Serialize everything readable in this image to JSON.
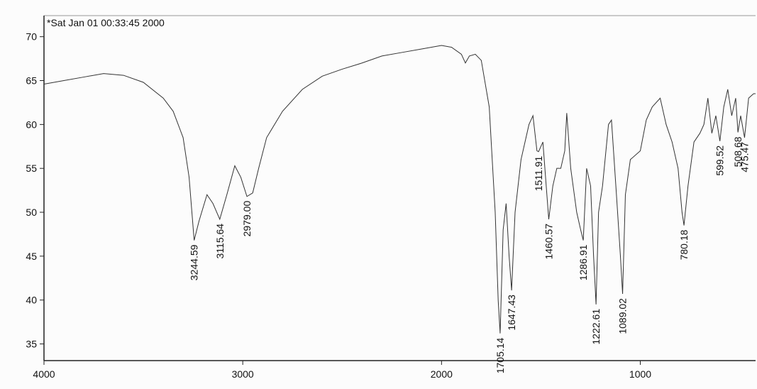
{
  "chart_data": {
    "type": "line",
    "title": "*Sat Jan 01 00:33:45 2000",
    "series": [
      {
        "color": "#333333",
        "x": [
          4000,
          3900,
          3800,
          3700,
          3600,
          3500,
          3400,
          3350,
          3300,
          3270,
          3244.59,
          3220,
          3180,
          3150,
          3115.64,
          3080,
          3040,
          3010,
          2979,
          2950,
          2920,
          2880,
          2800,
          2700,
          2600,
          2500,
          2400,
          2300,
          2200,
          2100,
          2000,
          1950,
          1900,
          1880,
          1860,
          1830,
          1800,
          1760,
          1730,
          1715,
          1705.14,
          1690,
          1675,
          1660,
          1647.43,
          1630,
          1600,
          1560,
          1540,
          1520,
          1511.91,
          1490,
          1470,
          1460.57,
          1440,
          1420,
          1400,
          1380,
          1370,
          1350,
          1320,
          1300,
          1286.91,
          1270,
          1250,
          1235,
          1222.61,
          1210,
          1190,
          1160,
          1145,
          1120,
          1100,
          1089.02,
          1075,
          1050,
          1000,
          970,
          940,
          900,
          870,
          840,
          810,
          790,
          780.18,
          760,
          730,
          700,
          680,
          660,
          640,
          620,
          599.52,
          580,
          560,
          540,
          520,
          508.68,
          495,
          475.47,
          455,
          430,
          420
        ],
        "values": [
          64.6,
          65.0,
          65.4,
          65.8,
          65.6,
          64.8,
          63.0,
          61.5,
          58.5,
          54,
          46.8,
          49,
          52,
          51,
          49.2,
          52,
          55.3,
          54,
          51.8,
          52.2,
          55,
          58.5,
          61.5,
          64,
          65.5,
          66.3,
          67,
          67.8,
          68.2,
          68.6,
          69.0,
          68.8,
          68.0,
          67.0,
          67.8,
          68.0,
          67.3,
          62,
          50,
          40,
          36.2,
          48,
          51,
          45,
          41.1,
          50,
          56,
          60,
          61,
          57,
          56.9,
          58,
          52,
          49.2,
          53,
          55,
          55,
          57,
          61.3,
          55,
          50,
          48,
          46.8,
          55,
          53,
          45,
          39.5,
          50,
          53,
          60,
          60.5,
          52,
          45,
          40.7,
          52,
          56,
          57,
          60.5,
          62,
          63.0,
          60,
          58,
          55,
          50,
          48.5,
          53,
          58,
          59,
          60,
          63,
          59,
          61,
          58.1,
          62,
          64,
          61,
          63,
          59.1,
          61,
          58.5,
          63,
          63.5,
          63.5
        ]
      }
    ],
    "annotations": [
      {
        "x": 3244.59,
        "y": 46.8,
        "label": "3244.59"
      },
      {
        "x": 3115.64,
        "y": 49.2,
        "label": "3115.64"
      },
      {
        "x": 2979.0,
        "y": 51.8,
        "label": "2979.00"
      },
      {
        "x": 1705.14,
        "y": 36.2,
        "label": "1705.14"
      },
      {
        "x": 1647.43,
        "y": 41.1,
        "label": "1647.43"
      },
      {
        "x": 1511.91,
        "y": 56.9,
        "label": "1511.91"
      },
      {
        "x": 1460.57,
        "y": 49.2,
        "label": "1460.57"
      },
      {
        "x": 1286.91,
        "y": 46.8,
        "label": "1286.91"
      },
      {
        "x": 1222.61,
        "y": 39.5,
        "label": "1222.61"
      },
      {
        "x": 1089.02,
        "y": 40.7,
        "label": "1089.02"
      },
      {
        "x": 780.18,
        "y": 48.5,
        "label": "780.18"
      },
      {
        "x": 599.52,
        "y": 58.1,
        "label": "599.52"
      },
      {
        "x": 508.68,
        "y": 59.1,
        "label": "508.68"
      },
      {
        "x": 475.47,
        "y": 58.5,
        "label": "475.47"
      }
    ],
    "xlim": [
      4000,
      420
    ],
    "xticks": [
      4000,
      3000,
      2000,
      1000
    ],
    "ylim": [
      33.1,
      72.4
    ],
    "yticks": [
      35,
      40,
      45,
      50,
      55,
      60,
      65,
      70
    ]
  }
}
